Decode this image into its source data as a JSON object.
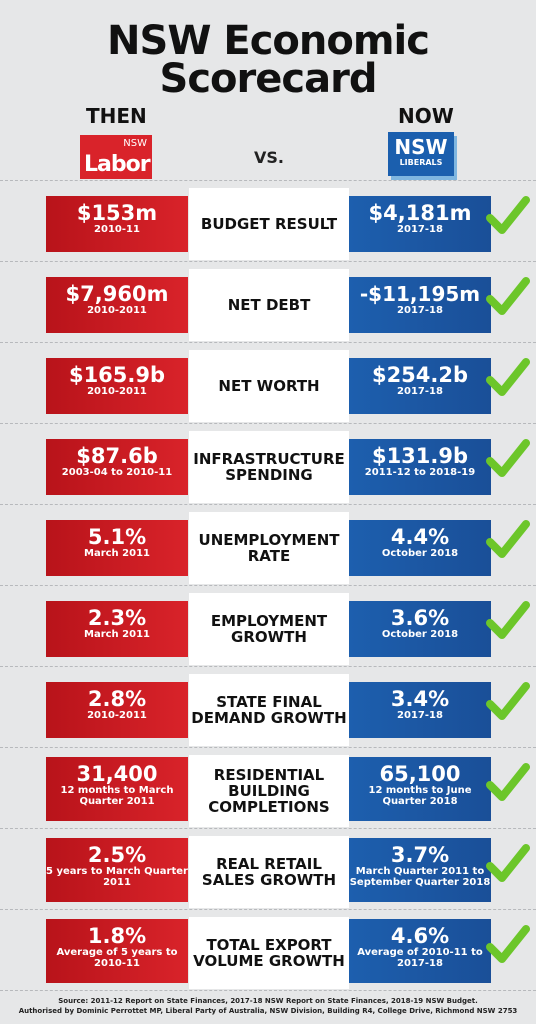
{
  "title": "NSW Economic Scorecard",
  "title_line1": "NSW Economic",
  "title_line2": "Scorecard",
  "then_label": "THEN",
  "now_label": "NOW",
  "vs_label": "VS.",
  "labor_logo": {
    "nsw": "NSW",
    "word": "Labor"
  },
  "liberal_logo": {
    "nsw": "NSW",
    "word": "LIBERALS"
  },
  "rows": [
    {
      "metric": "BUDGET RESULT",
      "then_value": "$153m",
      "then_period": "2010-11",
      "now_value": "$4,181m",
      "now_period": "2017-18"
    },
    {
      "metric": "NET DEBT",
      "then_value": "$7,960m",
      "then_period": "2010-2011",
      "now_value": "-$11,195m",
      "now_period": "2017-18"
    },
    {
      "metric": "NET WORTH",
      "then_value": "$165.9b",
      "then_period": "2010-2011",
      "now_value": "$254.2b",
      "now_period": "2017-18"
    },
    {
      "metric": "INFRASTRUCTURE SPENDING",
      "then_value": "$87.6b",
      "then_period": "2003-04 to 2010-11",
      "now_value": "$131.9b",
      "now_period": "2011-12 to 2018-19"
    },
    {
      "metric": "UNEMPLOYMENT RATE",
      "then_value": "5.1%",
      "then_period": "March 2011",
      "now_value": "4.4%",
      "now_period": "October 2018"
    },
    {
      "metric": "EMPLOYMENT GROWTH",
      "then_value": "2.3%",
      "then_period": "March 2011",
      "now_value": "3.6%",
      "now_period": "October 2018"
    },
    {
      "metric": "STATE FINAL DEMAND GROWTH",
      "then_value": "2.8%",
      "then_period": "2010-2011",
      "now_value": "3.4%",
      "now_period": "2017-18"
    },
    {
      "metric": "RESIDENTIAL BUILDING COMPLETIONS",
      "then_value": "31,400",
      "then_period": "12 months to March Quarter 2011",
      "now_value": "65,100",
      "now_period": "12 months to June Quarter 2018"
    },
    {
      "metric": "REAL RETAIL SALES GROWTH",
      "then_value": "2.5%",
      "then_period": "5 years to March Quarter 2011",
      "now_value": "3.7%",
      "now_period": "March Quarter 2011 to September Quarter 2018"
    },
    {
      "metric": "TOTAL EXPORT VOLUME GROWTH",
      "then_value": "1.8%",
      "then_period": "Average of 5 years to 2010-11",
      "now_value": "4.6%",
      "now_period": "Average of 2010-11 to 2017-18"
    }
  ],
  "footer_line1": "Source: 2011-12 Report on State Finances, 2017-18 NSW Report on State Finances, 2018-19 NSW Budget.",
  "footer_line2": "Authorised by Dominic Perrottet MP, Liberal Party of Australia, NSW Division, Building R4, College Drive, Richmond NSW 2753",
  "colors": {
    "labor_red": "#d9232a",
    "liberal_blue": "#1d5fae",
    "check_green": "#6cc62a"
  },
  "icons": {
    "check": "green-check-icon"
  }
}
